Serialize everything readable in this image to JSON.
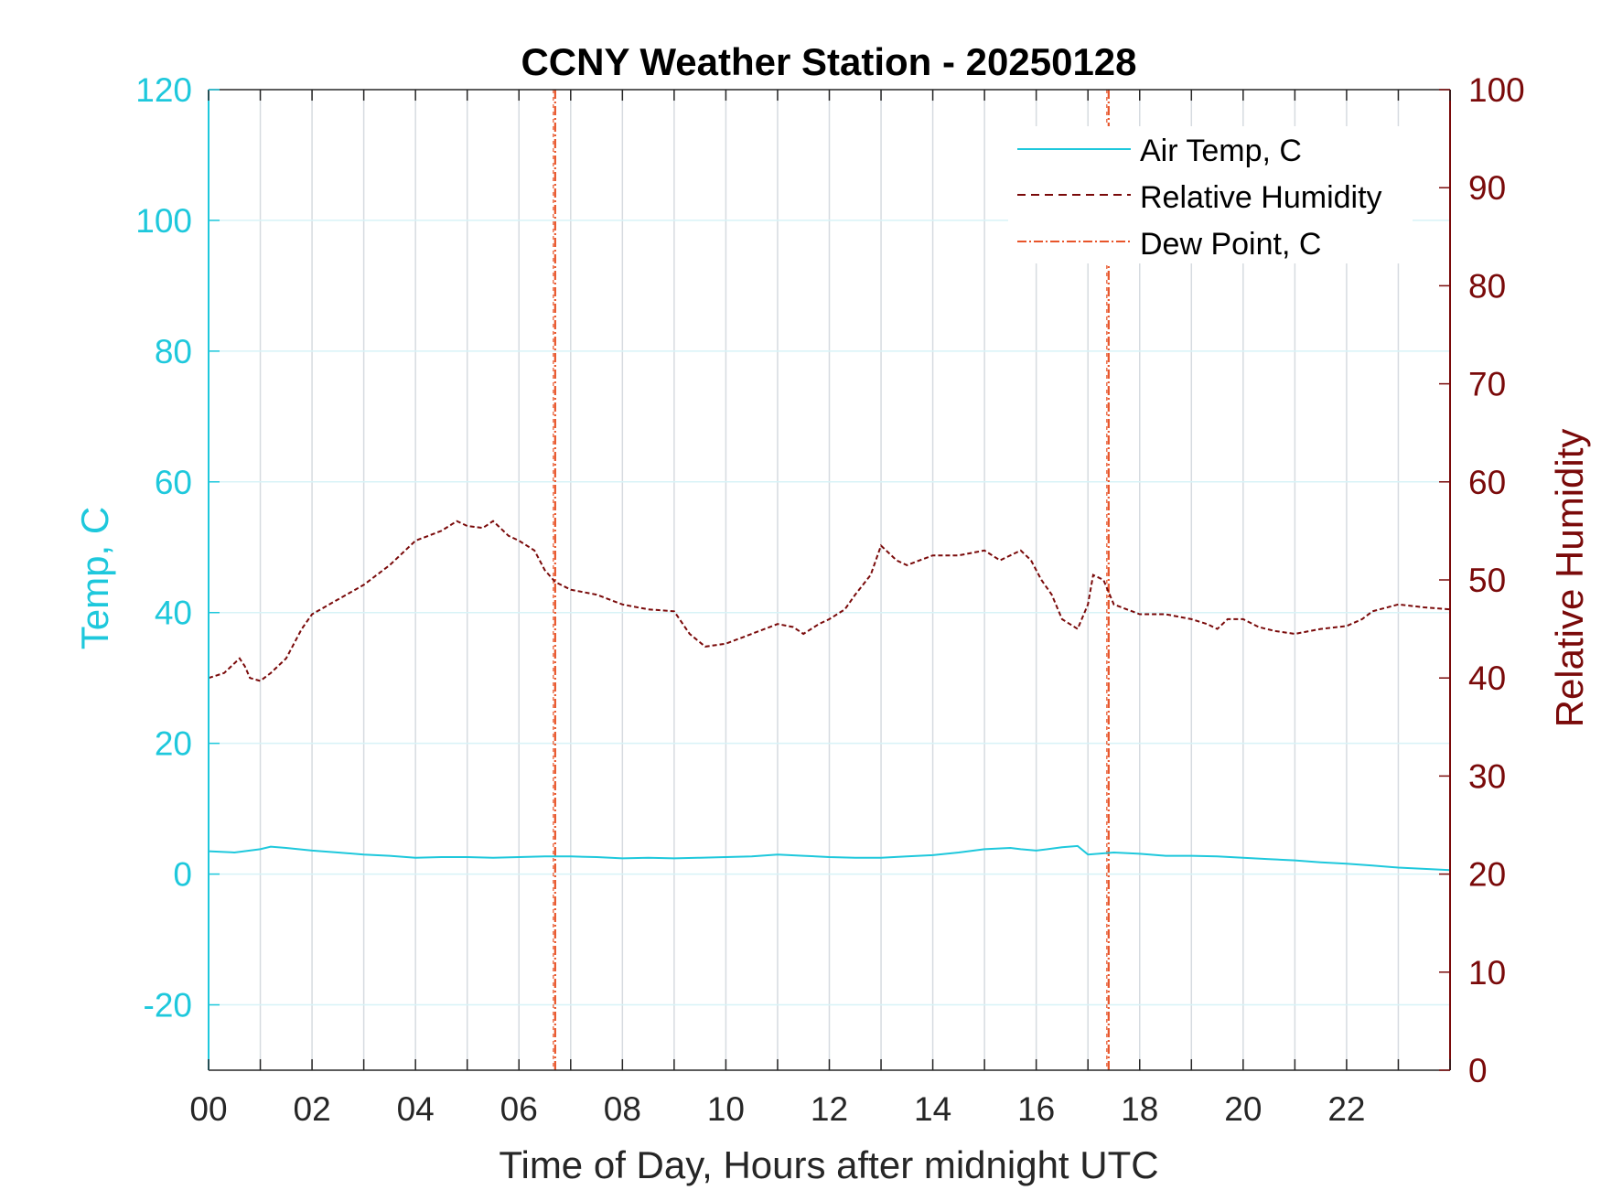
{
  "chart_data": {
    "type": "line",
    "title": "CCNY Weather Station - 20250128",
    "xlabel": "Time of Day, Hours after midnight UTC",
    "ylabel_left": "Temp, C",
    "ylabel_right": "Relative Humidity",
    "xlim": [
      0,
      24
    ],
    "ylim_left": [
      -30,
      120
    ],
    "ylim_right": [
      0,
      100
    ],
    "x_ticks": [
      0,
      2,
      4,
      6,
      8,
      10,
      12,
      14,
      16,
      18,
      20,
      22
    ],
    "x_tick_labels": [
      "00",
      "02",
      "04",
      "06",
      "08",
      "10",
      "12",
      "14",
      "16",
      "18",
      "20",
      "22"
    ],
    "y_left_ticks": [
      -20,
      0,
      20,
      40,
      60,
      80,
      100,
      120
    ],
    "y_left_tick_labels": [
      "-20",
      "0",
      "20",
      "40",
      "60",
      "80",
      "100",
      "120"
    ],
    "y_right_ticks": [
      0,
      10,
      20,
      30,
      40,
      50,
      60,
      70,
      80,
      90,
      100
    ],
    "y_right_tick_labels": [
      "0",
      "10",
      "20",
      "30",
      "40",
      "50",
      "60",
      "70",
      "80",
      "90",
      "100"
    ],
    "grid": true,
    "legend_position": "top-right",
    "colors": {
      "air_temp": "#1ec8dc",
      "relative_humidity": "#7a0a0a",
      "dew_point": "#e8552a",
      "left_axis": "#1ec8dc",
      "right_axis": "#7a0a0a",
      "grid_vertical": "#d6dbe0",
      "grid_horizontal": "#d8f3f7"
    },
    "series": [
      {
        "name": "Air Temp, C",
        "axis": "left",
        "style": "solid",
        "x": [
          0,
          0.5,
          1,
          1.2,
          1.5,
          2,
          2.5,
          3,
          3.5,
          4,
          4.5,
          5,
          5.5,
          6,
          6.5,
          7,
          7.5,
          8,
          8.5,
          9,
          9.5,
          10,
          10.5,
          11,
          11.5,
          12,
          12.5,
          13,
          13.5,
          14,
          14.5,
          15,
          15.5,
          15.7,
          16,
          16.5,
          16.8,
          17,
          17.5,
          18,
          18.5,
          19,
          19.5,
          20,
          20.5,
          21,
          21.5,
          22,
          22.5,
          23,
          23.5,
          24
        ],
        "values": [
          3.5,
          3.3,
          3.8,
          4.2,
          4.0,
          3.6,
          3.3,
          3.0,
          2.8,
          2.5,
          2.6,
          2.6,
          2.5,
          2.6,
          2.7,
          2.7,
          2.6,
          2.4,
          2.5,
          2.4,
          2.5,
          2.6,
          2.7,
          3.0,
          2.8,
          2.6,
          2.5,
          2.5,
          2.7,
          2.9,
          3.3,
          3.8,
          4.0,
          3.8,
          3.6,
          4.1,
          4.3,
          3.0,
          3.3,
          3.1,
          2.8,
          2.8,
          2.7,
          2.5,
          2.3,
          2.1,
          1.8,
          1.6,
          1.3,
          1.0,
          0.8,
          0.6
        ]
      },
      {
        "name": "Relative Humidity",
        "axis": "right",
        "style": "dashed",
        "x": [
          0,
          0.3,
          0.5,
          0.6,
          0.7,
          0.8,
          1.0,
          1.2,
          1.5,
          1.8,
          2.0,
          2.5,
          3.0,
          3.5,
          4.0,
          4.5,
          4.8,
          5.0,
          5.3,
          5.5,
          5.8,
          6.0,
          6.3,
          6.5,
          6.7,
          7.0,
          7.5,
          8.0,
          8.5,
          9.0,
          9.3,
          9.6,
          10.0,
          10.5,
          11.0,
          11.3,
          11.5,
          11.8,
          12.0,
          12.3,
          12.5,
          12.8,
          13.0,
          13.3,
          13.5,
          14.0,
          14.5,
          15.0,
          15.3,
          15.5,
          15.7,
          15.9,
          16.1,
          16.3,
          16.5,
          16.8,
          17.0,
          17.1,
          17.3,
          17.5,
          18.0,
          18.5,
          19.0,
          19.3,
          19.5,
          19.7,
          20.0,
          20.3,
          20.6,
          21.0,
          21.5,
          22.0,
          22.3,
          22.5,
          23.0,
          23.5,
          24.0
        ],
        "values": [
          40.0,
          40.5,
          41.5,
          42.0,
          41.2,
          40.0,
          39.7,
          40.5,
          42.0,
          45.0,
          46.5,
          48.0,
          49.5,
          51.5,
          54.0,
          55.0,
          56.0,
          55.5,
          55.3,
          56.0,
          54.5,
          54.0,
          53.0,
          51.0,
          49.8,
          49.0,
          48.5,
          47.5,
          47.0,
          46.8,
          44.5,
          43.2,
          43.5,
          44.5,
          45.5,
          45.2,
          44.5,
          45.5,
          46.0,
          47.0,
          48.5,
          50.5,
          53.5,
          52.0,
          51.5,
          52.5,
          52.5,
          53.0,
          52.0,
          52.5,
          53.0,
          52.0,
          50.0,
          48.5,
          46.0,
          45.0,
          47.5,
          50.5,
          50.0,
          47.5,
          46.5,
          46.5,
          46.0,
          45.5,
          45.0,
          46.0,
          46.0,
          45.2,
          44.8,
          44.5,
          45.0,
          45.3,
          46.0,
          46.8,
          47.5,
          47.2,
          47.0
        ]
      },
      {
        "name": "Dew Point, C",
        "axis": "left",
        "style": "dash-dot",
        "vertical_lines_x": [
          6.7,
          17.4
        ]
      }
    ]
  }
}
